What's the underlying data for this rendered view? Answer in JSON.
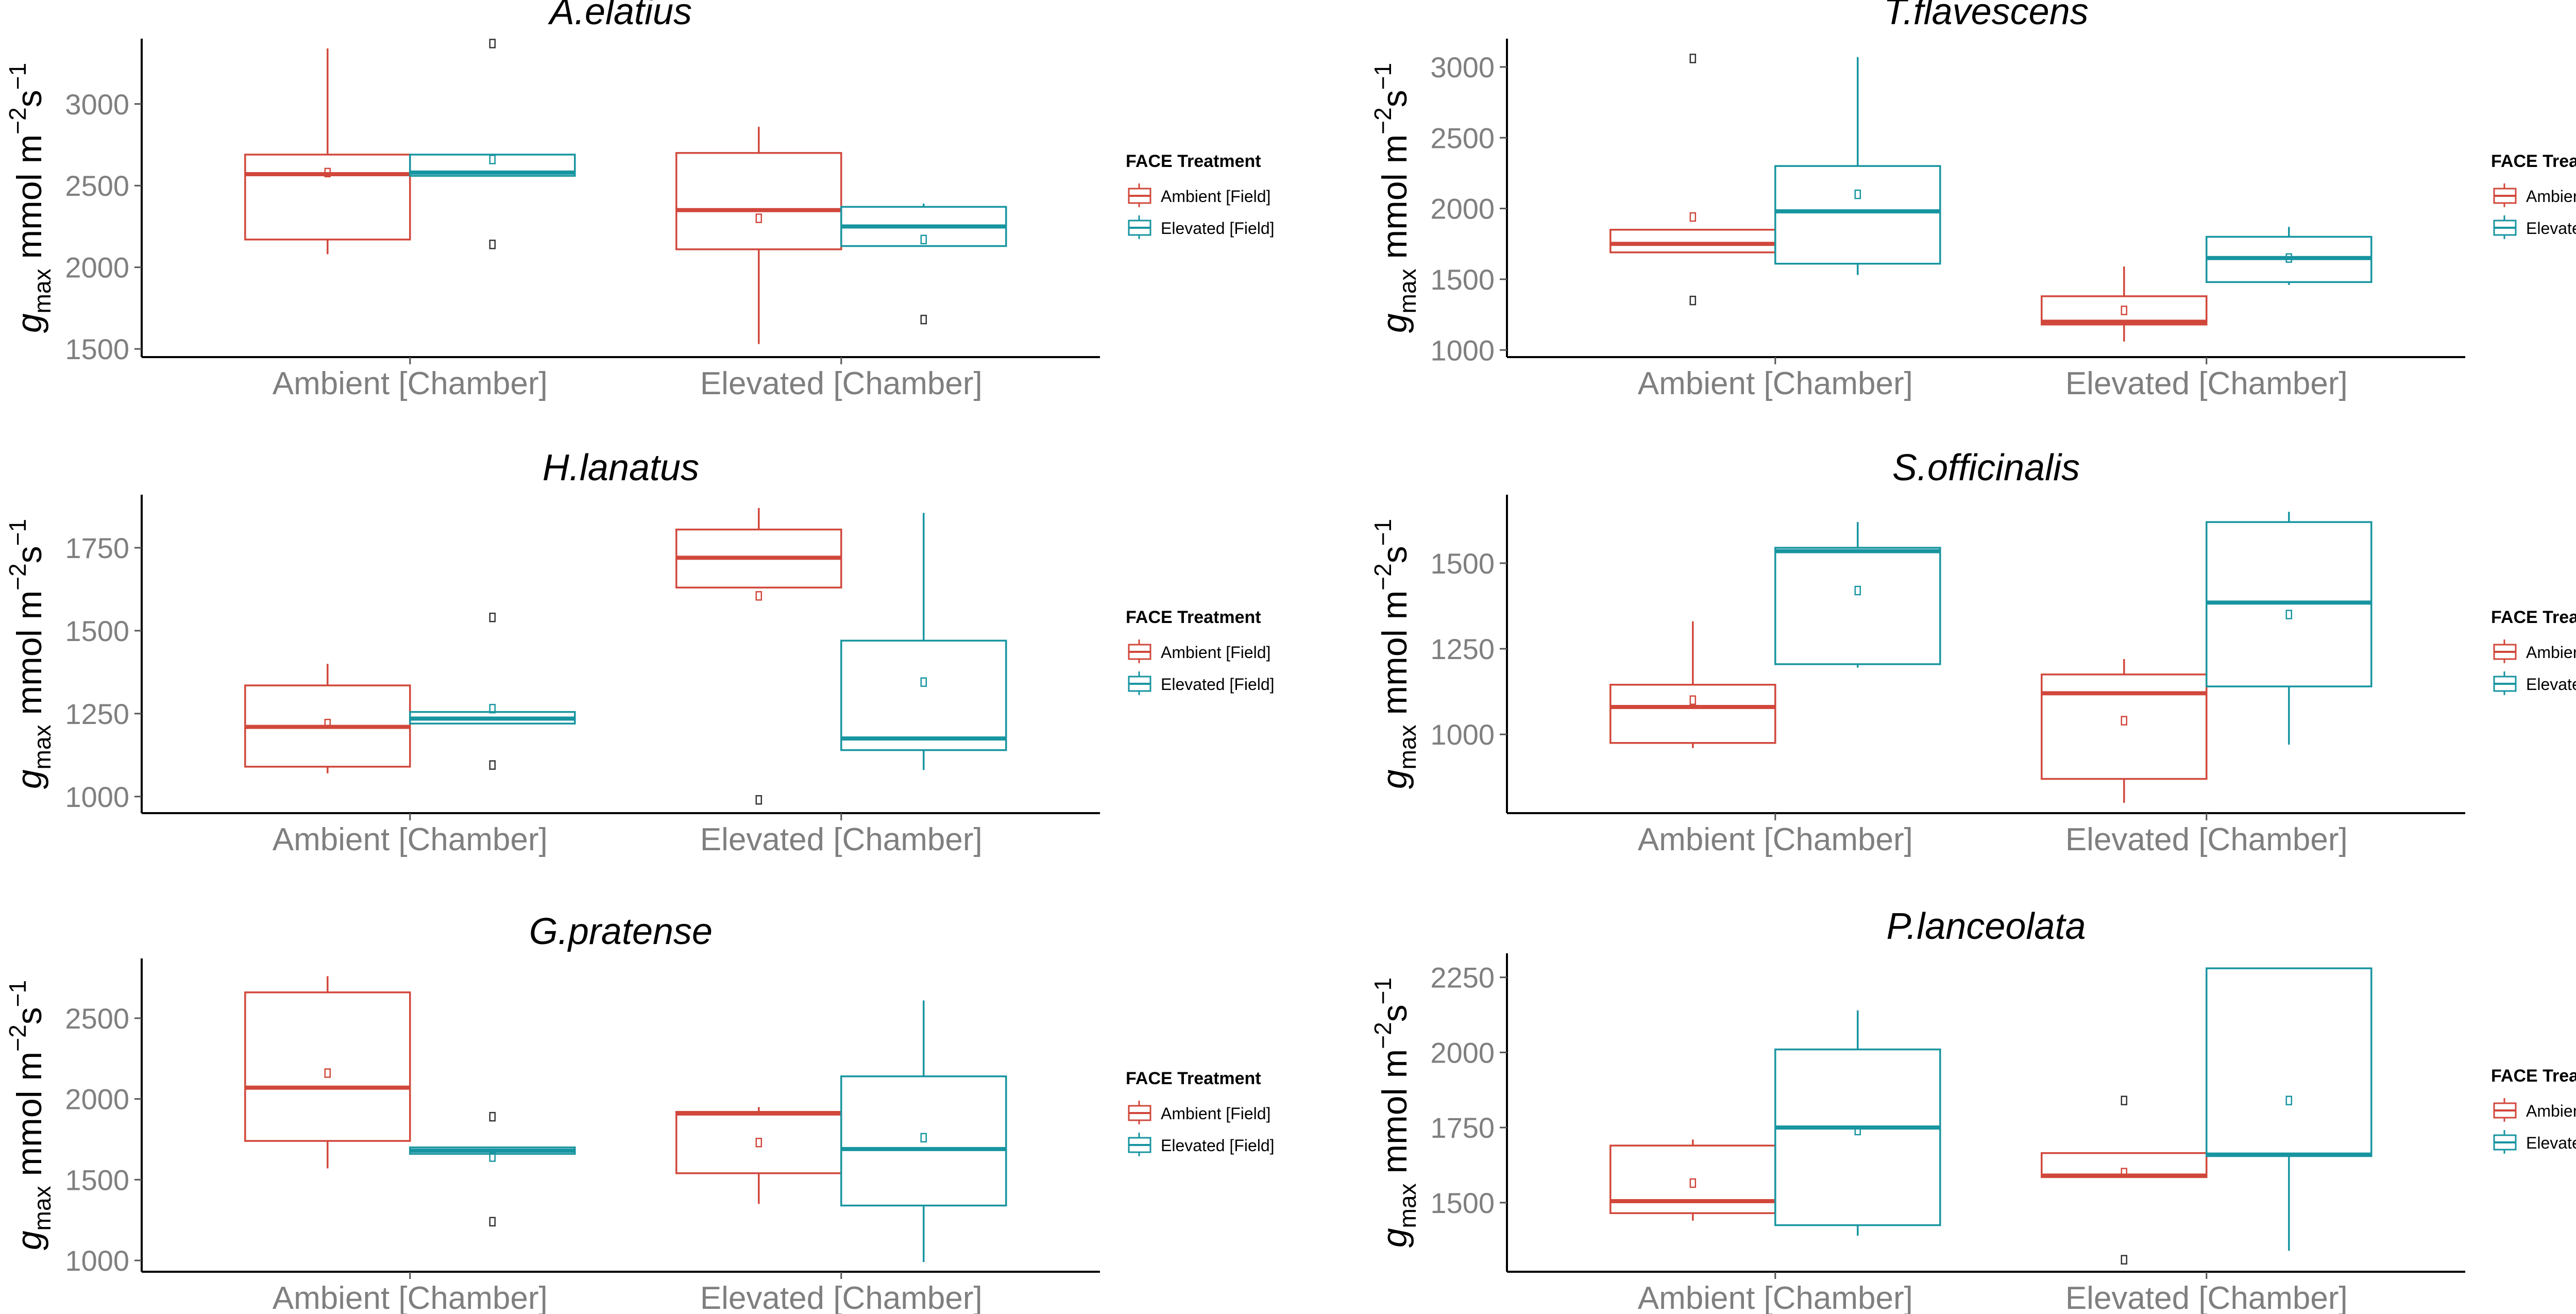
{
  "colors": {
    "ambient": "#d1473b",
    "elevated": "#1795a0"
  },
  "chart_data": [
    {
      "type": "box",
      "title": "A.elatius",
      "ylabel_main": "g",
      "ylabel_sub": "max",
      "ylabel_unit": " mmol m",
      "ylabel_exp1": "−2",
      "ylabel_s": "s",
      "ylabel_exp2": "−1",
      "categories": [
        "Ambient [Chamber]",
        "Elevated [Chamber]"
      ],
      "ylim": [
        1450,
        3400
      ],
      "yticks": [
        1500,
        2000,
        2500,
        3000
      ],
      "legend_title": "FACE Treatment",
      "legend": [
        "Ambient [Field]",
        "Elevated [Field]"
      ],
      "boxes": [
        {
          "category": 0,
          "series": 0,
          "min": 2080,
          "q1": 2170,
          "median": 2570,
          "q3": 2690,
          "max": 3340,
          "mean": 2580,
          "outliers": []
        },
        {
          "category": 0,
          "series": 1,
          "min": 2560,
          "q1": 2560,
          "median": 2580,
          "q3": 2690,
          "max": 2690,
          "mean": 2660,
          "outliers": [
            3370,
            2140
          ]
        },
        {
          "category": 1,
          "series": 0,
          "min": 1530,
          "q1": 2110,
          "median": 2350,
          "q3": 2700,
          "max": 2860,
          "mean": 2300,
          "outliers": []
        },
        {
          "category": 1,
          "series": 1,
          "min": 2130,
          "q1": 2130,
          "median": 2250,
          "q3": 2370,
          "max": 2390,
          "mean": 2170,
          "outliers": [
            1680
          ]
        }
      ]
    },
    {
      "type": "box",
      "title": "T.flavescens",
      "ylabel_main": "g",
      "ylabel_sub": "max",
      "ylabel_unit": " mmol m",
      "ylabel_exp1": "−2",
      "ylabel_s": "s",
      "ylabel_exp2": "−1",
      "categories": [
        "Ambient [Chamber]",
        "Elevated [Chamber]"
      ],
      "ylim": [
        950,
        3200
      ],
      "yticks": [
        1000,
        1500,
        2000,
        2500,
        3000
      ],
      "legend_title": "FACE Treatment",
      "legend": [
        "Ambient [Field]",
        "Elevated [Field]"
      ],
      "boxes": [
        {
          "category": 0,
          "series": 0,
          "min": 1690,
          "q1": 1690,
          "median": 1750,
          "q3": 1850,
          "max": 1850,
          "mean": 1940,
          "outliers": [
            3060,
            1350
          ]
        },
        {
          "category": 0,
          "series": 1,
          "min": 1530,
          "q1": 1610,
          "median": 1980,
          "q3": 2300,
          "max": 3070,
          "mean": 2100,
          "outliers": []
        },
        {
          "category": 1,
          "series": 0,
          "min": 1060,
          "q1": 1180,
          "median": 1200,
          "q3": 1380,
          "max": 1590,
          "mean": 1280,
          "outliers": []
        },
        {
          "category": 1,
          "series": 1,
          "min": 1460,
          "q1": 1480,
          "median": 1650,
          "q3": 1800,
          "max": 1870,
          "mean": 1650,
          "outliers": []
        }
      ]
    },
    {
      "type": "box",
      "title": "H.lanatus",
      "ylabel_main": "g",
      "ylabel_sub": "max",
      "ylabel_unit": " mmol m",
      "ylabel_exp1": "−2",
      "ylabel_s": "s",
      "ylabel_exp2": "−1",
      "categories": [
        "Ambient [Chamber]",
        "Elevated [Chamber]"
      ],
      "ylim": [
        950,
        1910
      ],
      "yticks": [
        1000,
        1250,
        1500,
        1750
      ],
      "legend_title": "FACE Treatment",
      "legend": [
        "Ambient [Field]",
        "Elevated [Field]"
      ],
      "boxes": [
        {
          "category": 0,
          "series": 0,
          "min": 1070,
          "q1": 1090,
          "median": 1210,
          "q3": 1335,
          "max": 1400,
          "mean": 1220,
          "outliers": []
        },
        {
          "category": 0,
          "series": 1,
          "min": 1220,
          "q1": 1220,
          "median": 1235,
          "q3": 1255,
          "max": 1255,
          "mean": 1265,
          "outliers": [
            1540,
            1095
          ]
        },
        {
          "category": 1,
          "series": 0,
          "min": 1630,
          "q1": 1630,
          "median": 1720,
          "q3": 1805,
          "max": 1870,
          "mean": 1605,
          "outliers": [
            990
          ]
        },
        {
          "category": 1,
          "series": 1,
          "min": 1080,
          "q1": 1140,
          "median": 1175,
          "q3": 1470,
          "max": 1855,
          "mean": 1345,
          "outliers": []
        }
      ]
    },
    {
      "type": "box",
      "title": "S.officinalis",
      "ylabel_main": "g",
      "ylabel_sub": "max",
      "ylabel_unit": " mmol m",
      "ylabel_exp1": "−2",
      "ylabel_s": "s",
      "ylabel_exp2": "−1",
      "categories": [
        "Ambient [Chamber]",
        "Elevated [Chamber]"
      ],
      "ylim": [
        770,
        1700
      ],
      "yticks": [
        1000,
        1250,
        1500
      ],
      "legend_title": "FACE Treatment",
      "legend": [
        "Ambient [Field]",
        "Elevated [Field]"
      ],
      "boxes": [
        {
          "category": 0,
          "series": 0,
          "min": 960,
          "q1": 975,
          "median": 1080,
          "q3": 1145,
          "max": 1330,
          "mean": 1100,
          "outliers": []
        },
        {
          "category": 0,
          "series": 1,
          "min": 1195,
          "q1": 1205,
          "median": 1535,
          "q3": 1545,
          "max": 1620,
          "mean": 1420,
          "outliers": []
        },
        {
          "category": 1,
          "series": 0,
          "min": 800,
          "q1": 870,
          "median": 1120,
          "q3": 1175,
          "max": 1220,
          "mean": 1040,
          "outliers": []
        },
        {
          "category": 1,
          "series": 1,
          "min": 970,
          "q1": 1140,
          "median": 1385,
          "q3": 1620,
          "max": 1650,
          "mean": 1350,
          "outliers": []
        }
      ]
    },
    {
      "type": "box",
      "title": "G.pratense",
      "ylabel_main": "g",
      "ylabel_sub": "max",
      "ylabel_unit": " mmol m",
      "ylabel_exp1": "−2",
      "ylabel_s": "s",
      "ylabel_exp2": "−1",
      "categories": [
        "Ambient [Chamber]",
        "Elevated [Chamber]"
      ],
      "ylim": [
        930,
        2870
      ],
      "yticks": [
        1000,
        1500,
        2000,
        2500
      ],
      "legend_title": "FACE Treatment",
      "legend": [
        "Ambient [Field]",
        "Elevated [Field]"
      ],
      "boxes": [
        {
          "category": 0,
          "series": 0,
          "min": 1570,
          "q1": 1740,
          "median": 2070,
          "q3": 2660,
          "max": 2760,
          "mean": 2160,
          "outliers": []
        },
        {
          "category": 0,
          "series": 1,
          "min": 1660,
          "q1": 1660,
          "median": 1680,
          "q3": 1700,
          "max": 1700,
          "mean": 1640,
          "outliers": [
            1890,
            1240
          ]
        },
        {
          "category": 1,
          "series": 0,
          "min": 1350,
          "q1": 1540,
          "median": 1910,
          "q3": 1920,
          "max": 1950,
          "mean": 1730,
          "outliers": []
        },
        {
          "category": 1,
          "series": 1,
          "min": 990,
          "q1": 1340,
          "median": 1690,
          "q3": 2140,
          "max": 2610,
          "mean": 1760,
          "outliers": []
        }
      ]
    },
    {
      "type": "box",
      "title": "P.lanceolata",
      "ylabel_main": "g",
      "ylabel_sub": "max",
      "ylabel_unit": " mmol m",
      "ylabel_exp1": "−2",
      "ylabel_s": "s",
      "ylabel_exp2": "−1",
      "categories": [
        "Ambient [Chamber]",
        "Elevated [Chamber]"
      ],
      "ylim": [
        1270,
        2330
      ],
      "yticks": [
        1500,
        1750,
        2000,
        2250
      ],
      "legend_title": "FACE Treatment",
      "legend": [
        "Ambient [Field]",
        "Elevated [Field]"
      ],
      "boxes": [
        {
          "category": 0,
          "series": 0,
          "min": 1440,
          "q1": 1465,
          "median": 1505,
          "q3": 1690,
          "max": 1710,
          "mean": 1565,
          "outliers": []
        },
        {
          "category": 0,
          "series": 1,
          "min": 1390,
          "q1": 1425,
          "median": 1750,
          "q3": 2010,
          "max": 2140,
          "mean": 1740,
          "outliers": []
        },
        {
          "category": 1,
          "series": 0,
          "min": 1585,
          "q1": 1585,
          "median": 1590,
          "q3": 1665,
          "max": 1665,
          "mean": 1600,
          "outliers": [
            1840,
            1310
          ]
        },
        {
          "category": 1,
          "series": 1,
          "min": 1340,
          "q1": 1655,
          "median": 1660,
          "q3": 2280,
          "max": 2280,
          "mean": 1840,
          "outliers": []
        }
      ]
    }
  ]
}
